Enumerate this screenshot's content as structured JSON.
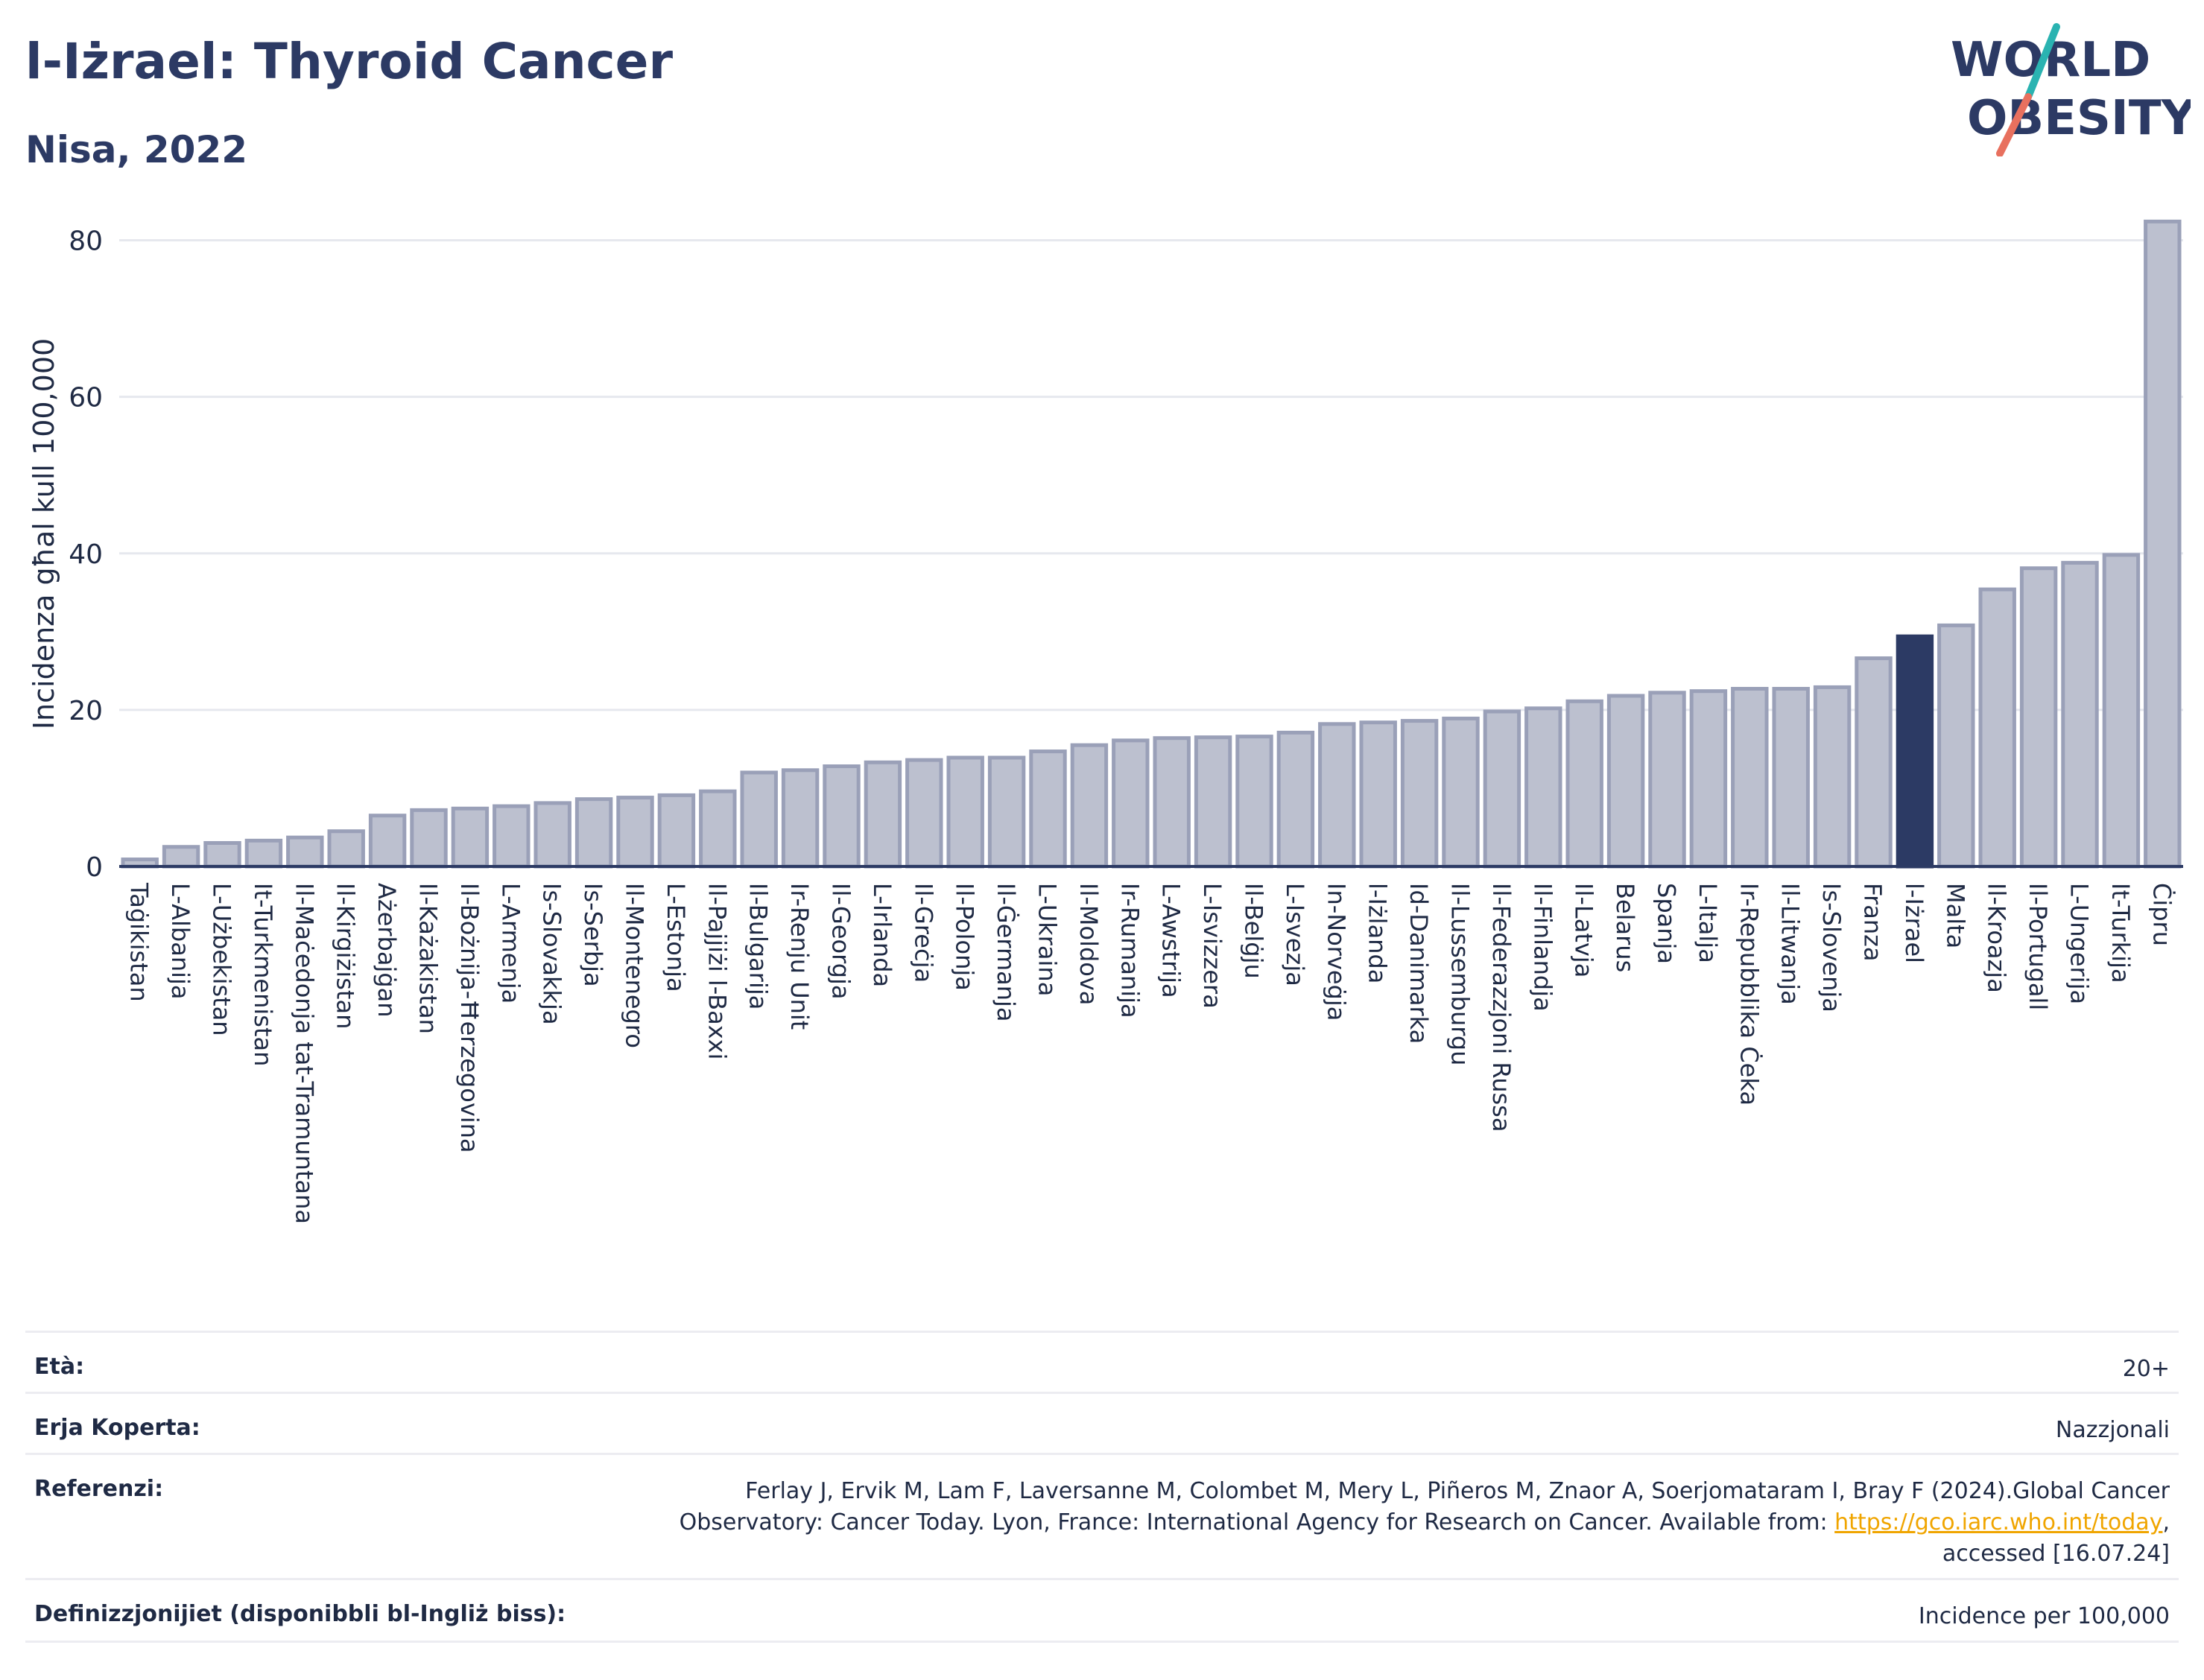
{
  "header": {
    "title": "l-Iżrael: Thyroid Cancer",
    "subtitle": "Nisa, 2022"
  },
  "logo": {
    "line1": "WORLD",
    "line2": "OBESITY",
    "accent_teal": "#2ab3b1",
    "accent_red": "#e8705e",
    "text_color": "#2c3a64"
  },
  "chart_data": {
    "type": "bar",
    "ylabel": "Incidenza għal kull 100,000",
    "ylim": [
      0,
      85
    ],
    "yticks": [
      0,
      20,
      40,
      60,
      80
    ],
    "grid": true,
    "highlight": "l-Iżrael",
    "colors": {
      "bar": "#bcc0cf",
      "bar_edge": "#9aa0b8",
      "highlight": "#2c3a64"
    },
    "categories": [
      "Taġikistan",
      "L-Albanija",
      "L-Użbekistan",
      "It-Turkmenistan",
      "Il-Maċedonja tat-Tramuntana",
      "Il-Kirgiżistan",
      "Ażerbajġan",
      "Il-Każakistan",
      "Il-Bożnija-Ħerzegovina",
      "L-Armenja",
      "Is-Slovakkja",
      "Is-Serbja",
      "Il-Montenegro",
      "L-Estonja",
      "Il-Pajjiżi l-Baxxi",
      "Il-Bulgarija",
      "Ir-Renju Unit",
      "Il-Georgja",
      "L-Irlanda",
      "Il-Greċja",
      "Il-Polonja",
      "Il-Ġermanja",
      "L-Ukraina",
      "Il-Moldova",
      "Ir-Rumanija",
      "L-Awstrija",
      "L-Isvizzera",
      "Il-Belġju",
      "L-Isvezja",
      "In-Norveġja",
      "l-Iżlanda",
      "Id-Danimarka",
      "Il-Lussemburgu",
      "Il-Federazzjoni Russa",
      "Il-Finlandja",
      "Il-Latvja",
      "Belarus",
      "Spanja",
      "L-Italja",
      "Ir-Repubblika Ċeka",
      "Il-Litwanja",
      "Is-Slovenja",
      "Franza",
      "l-Iżrael",
      "Malta",
      "Il-Kroazja",
      "Il-Portugall",
      "L-Ungerija",
      "It-Turkija",
      "Ċipru"
    ],
    "values": [
      0.9,
      2.5,
      3.0,
      3.3,
      3.7,
      4.5,
      6.5,
      7.2,
      7.4,
      7.7,
      8.1,
      8.6,
      8.8,
      9.1,
      9.6,
      12.0,
      12.3,
      12.8,
      13.3,
      13.6,
      13.9,
      13.9,
      14.7,
      15.5,
      16.1,
      16.4,
      16.5,
      16.6,
      17.1,
      18.2,
      18.4,
      18.6,
      18.9,
      19.8,
      20.2,
      21.1,
      21.8,
      22.2,
      22.4,
      22.7,
      22.7,
      22.9,
      26.6,
      29.4,
      30.8,
      35.4,
      38.1,
      38.8,
      39.8,
      82.4
    ]
  },
  "meta": {
    "age_label": "Età:",
    "age_value": "20+",
    "area_label": "Erja Koperta:",
    "area_value": "Nazzjonali",
    "ref_label": "Referenzi:",
    "ref_line1": "Ferlay J, Ervik M, Lam F, Laversanne M, Colombet M, Mery L, Piñeros M, Znaor A, Soerjomataram I, Bray F (2024).Global Cancer",
    "ref_line2_prefix": "Observatory: Cancer Today. Lyon, France: International Agency for Research on Cancer. Available from: ",
    "ref_link": "https://gco.iarc.who.int/today",
    "ref_line2_suffix": ",",
    "ref_line3": "accessed [16.07.24]",
    "def_label": "Definizzjonijiet (disponibbli bl-Ingliż biss):",
    "def_value": "Incidence per 100,000"
  }
}
